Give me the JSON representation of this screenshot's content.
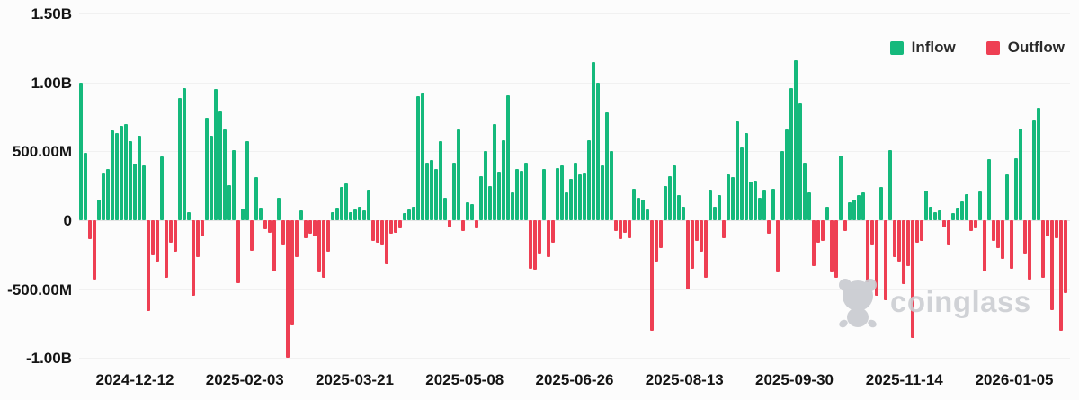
{
  "watermark": {
    "text": "coinglass"
  },
  "chart_data": {
    "type": "bar",
    "title": "",
    "description": "Daily net inflow/outflow bar chart: positive bars are Inflow (green), negative bars are Outflow (red)",
    "legend": [
      {
        "label": "Inflow",
        "color": "#15b97c"
      },
      {
        "label": "Outflow",
        "color": "#ee3f53"
      }
    ],
    "grid": true,
    "legend_position": "top-right",
    "ylim_millions": [
      -1000,
      1500
    ],
    "y_ticks": [
      {
        "label": "1.50B",
        "value": 1500
      },
      {
        "label": "1.00B",
        "value": 1000
      },
      {
        "label": "500.00M",
        "value": 500
      },
      {
        "label": "0",
        "value": 0
      },
      {
        "label": "-500.00M",
        "value": -500
      },
      {
        "label": "-1.00B",
        "value": -1000
      }
    ],
    "x_labels": [
      "2024-12-12",
      "2025-02-03",
      "2025-03-21",
      "2025-05-08",
      "2025-06-26",
      "2025-08-13",
      "2025-09-30",
      "2025-11-14",
      "2026-01-05"
    ],
    "x_range": [
      "2024-12-05",
      "2026-01-20"
    ],
    "unit": "millions",
    "values_millions": [
      1000,
      490,
      -140,
      -430,
      150,
      340,
      370,
      650,
      630,
      685,
      700,
      573,
      410,
      616,
      400,
      -660,
      -255,
      -300,
      465,
      -420,
      -160,
      -230,
      887,
      959,
      60,
      -550,
      -270,
      -120,
      742,
      612,
      952,
      790,
      660,
      255,
      508,
      -455,
      87,
      573,
      -220,
      310,
      90,
      -65,
      -90,
      -370,
      160,
      -180,
      -1000,
      -760,
      -270,
      70,
      -130,
      -100,
      -120,
      -380,
      -420,
      -230,
      60,
      90,
      240,
      270,
      60,
      80,
      100,
      70,
      220,
      -150,
      -160,
      -180,
      -320,
      -100,
      -90,
      -60,
      50,
      80,
      100,
      898,
      920,
      420,
      440,
      370,
      573,
      160,
      -50,
      420,
      660,
      -80,
      130,
      120,
      -60,
      320,
      500,
      250,
      700,
      350,
      580,
      908,
      200,
      370,
      360,
      420,
      -350,
      -360,
      -250,
      370,
      -270,
      -160,
      380,
      400,
      200,
      300,
      420,
      330,
      340,
      580,
      1147,
      1000,
      400,
      780,
      500,
      -80,
      -140,
      -90,
      -130,
      230,
      160,
      150,
      80,
      -800,
      -300,
      -200,
      250,
      320,
      400,
      180,
      100,
      -500,
      -350,
      -150,
      -230,
      -420,
      220,
      100,
      180,
      -130,
      330,
      310,
      720,
      530,
      630,
      280,
      290,
      160,
      220,
      -100,
      230,
      -380,
      500,
      660,
      960,
      1162,
      850,
      420,
      200,
      -330,
      -160,
      -150,
      100,
      -380,
      -420,
      470,
      -80,
      130,
      150,
      180,
      200,
      -450,
      -180,
      -550,
      240,
      -580,
      508,
      -270,
      -300,
      -460,
      -330,
      -855,
      -160,
      -150,
      215,
      95,
      60,
      75,
      -50,
      -180,
      55,
      90,
      140,
      190,
      -75,
      -60,
      210,
      -370,
      445,
      -150,
      -200,
      -280,
      335,
      -350,
      450,
      667,
      -250,
      -430,
      725,
      816,
      -420,
      -120,
      -650,
      -130,
      -800,
      -530
    ]
  }
}
